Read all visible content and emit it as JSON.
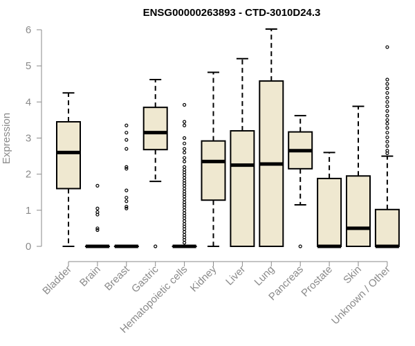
{
  "chart_data": {
    "type": "boxplot",
    "title": "ENSG00000263893 - CTD-3010D24.3",
    "xlabel": "",
    "ylabel": "Expression",
    "ylim": [
      0,
      6
    ],
    "yticks": [
      0,
      1,
      2,
      3,
      4,
      5,
      6
    ],
    "box_fill": "#efe8d0",
    "categories": [
      "Bladder",
      "Brain",
      "Breast",
      "Gastric",
      "Hematopoietic cells",
      "Kidney",
      "Liver",
      "Lung",
      "Pancreas",
      "Prostate",
      "Skin",
      "Unknown / Other"
    ],
    "series": [
      {
        "name": "Bladder",
        "min": 0.0,
        "q1": 1.6,
        "median": 2.6,
        "q3": 3.45,
        "max": 4.25,
        "outliers": []
      },
      {
        "name": "Brain",
        "min": 0.0,
        "q1": 0.0,
        "median": 0.0,
        "q3": 0.0,
        "max": 0.0,
        "outliers": [
          1.68,
          1.05,
          0.95,
          0.88,
          0.5,
          0.45
        ]
      },
      {
        "name": "Breast",
        "min": 0.0,
        "q1": 0.0,
        "median": 0.0,
        "q3": 0.0,
        "max": 0.0,
        "outliers": [
          3.35,
          3.15,
          2.95,
          2.7,
          2.2,
          2.15,
          1.55,
          1.35,
          1.25,
          1.1,
          1.05
        ]
      },
      {
        "name": "Gastric",
        "min": 1.8,
        "q1": 2.68,
        "median": 3.15,
        "q3": 3.85,
        "max": 4.62,
        "outliers": [
          0.0
        ]
      },
      {
        "name": "Hematopoietic cells",
        "min": 0.0,
        "q1": 0.0,
        "median": 0.0,
        "q3": 0.0,
        "max": 0.0,
        "outliers": [
          3.92,
          3.45,
          3.35,
          3.0,
          2.85,
          2.7,
          2.6,
          2.45,
          2.35,
          2.2,
          2.12,
          2.05,
          1.98,
          1.9,
          1.82,
          1.75,
          1.68,
          1.6,
          1.52,
          1.45,
          1.38,
          1.3,
          1.22,
          1.15,
          1.08,
          1.0,
          0.92,
          0.85,
          0.78,
          0.7,
          0.62,
          0.55,
          0.48,
          0.4,
          0.32,
          0.25,
          0.18,
          0.1
        ]
      },
      {
        "name": "Kidney",
        "min": 0.0,
        "q1": 1.28,
        "median": 2.35,
        "q3": 2.92,
        "max": 4.82,
        "outliers": []
      },
      {
        "name": "Liver",
        "min": 0.0,
        "q1": 0.0,
        "median": 2.25,
        "q3": 3.2,
        "max": 5.2,
        "outliers": []
      },
      {
        "name": "Lung",
        "min": 0.0,
        "q1": 0.0,
        "median": 2.28,
        "q3": 4.58,
        "max": 6.02,
        "outliers": []
      },
      {
        "name": "Pancreas",
        "min": 1.15,
        "q1": 2.15,
        "median": 2.65,
        "q3": 3.17,
        "max": 3.62,
        "outliers": [
          0.0
        ]
      },
      {
        "name": "Prostate",
        "min": 0.0,
        "q1": 0.0,
        "median": 0.0,
        "q3": 1.88,
        "max": 2.6,
        "outliers": []
      },
      {
        "name": "Skin",
        "min": 0.0,
        "q1": 0.0,
        "median": 0.5,
        "q3": 1.95,
        "max": 3.88,
        "outliers": []
      },
      {
        "name": "Unknown / Other",
        "min": 0.0,
        "q1": 0.0,
        "median": 0.0,
        "q3": 1.02,
        "max": 2.5,
        "outliers": [
          5.52,
          4.62,
          4.5,
          4.38,
          4.25,
          4.12,
          4.0,
          3.88,
          3.75,
          3.62,
          3.5,
          3.4,
          3.28,
          3.15,
          3.02,
          2.9,
          2.78,
          2.65,
          2.58
        ]
      }
    ]
  }
}
